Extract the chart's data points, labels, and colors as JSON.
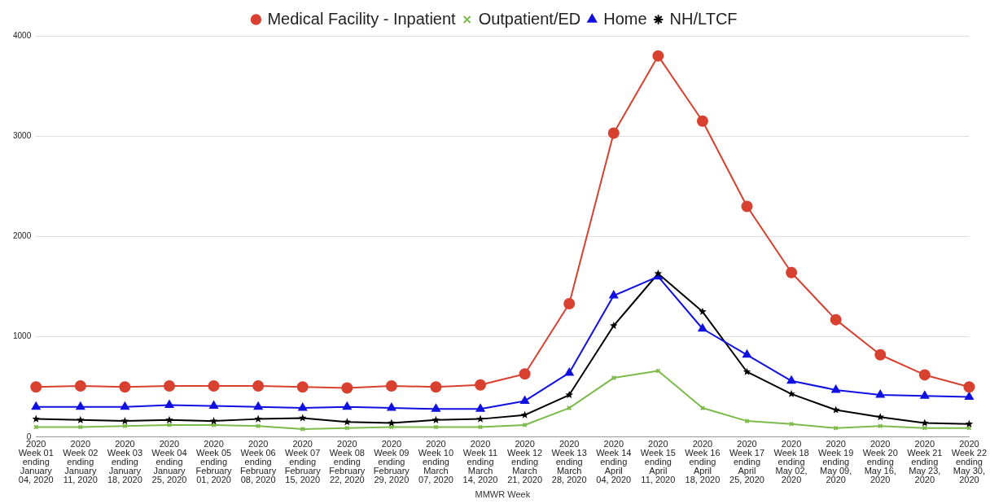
{
  "chart_data": {
    "type": "line",
    "xlabel": "MMWR Week",
    "categories": [
      "2020 Week 01 ending January 04, 2020",
      "2020 Week 02 ending January 11, 2020",
      "2020 Week 03 ending January 18, 2020",
      "2020 Week 04 ending January 25, 2020",
      "2020 Week 05 ending February 01, 2020",
      "2020 Week 06 ending February 08, 2020",
      "2020 Week 07 ending February 15, 2020",
      "2020 Week 08 ending February 22, 2020",
      "2020 Week 09 ending February 29, 2020",
      "2020 Week 10 ending March 07, 2020",
      "2020 Week 11 ending March 14, 2020",
      "2020 Week 12 ending March 21, 2020",
      "2020 Week 13 ending March 28, 2020",
      "2020 Week 14 ending April 04, 2020",
      "2020 Week 15 ending April 11, 2020",
      "2020 Week 16 ending April 18, 2020",
      "2020 Week 17 ending April 25, 2020",
      "2020 Week 18 ending May 02, 2020",
      "2020 Week 19 ending May 09, 2020",
      "2020 Week 20 ending May 16, 2020",
      "2020 Week 21 ending May 23, 2020",
      "2020 Week 22 ending May 30, 2020"
    ],
    "series": [
      {
        "name": "Medical Facility - Inpatient",
        "color": "#d8402f",
        "marker": "circle",
        "values": [
          500,
          510,
          500,
          510,
          510,
          510,
          500,
          490,
          510,
          500,
          520,
          630,
          1330,
          3030,
          3800,
          3150,
          2300,
          1640,
          1170,
          820,
          620,
          500
        ]
      },
      {
        "name": "Outpatient/ED",
        "color": "#7cba4a",
        "marker": "cross",
        "values": [
          100,
          100,
          110,
          120,
          120,
          110,
          80,
          90,
          100,
          100,
          100,
          120,
          290,
          590,
          660,
          290,
          160,
          130,
          90,
          110,
          90,
          90
        ]
      },
      {
        "name": "Home",
        "color": "#1010e0",
        "marker": "triangle",
        "values": [
          300,
          300,
          300,
          320,
          310,
          300,
          290,
          300,
          290,
          280,
          280,
          360,
          640,
          1410,
          1600,
          1080,
          820,
          560,
          470,
          420,
          410,
          400
        ]
      },
      {
        "name": "NH/LTCF",
        "color": "#000000",
        "marker": "star",
        "values": [
          180,
          170,
          160,
          170,
          160,
          180,
          190,
          150,
          140,
          170,
          180,
          220,
          420,
          1110,
          1630,
          1250,
          650,
          430,
          270,
          200,
          140,
          130
        ]
      }
    ],
    "ylim": [
      0,
      4000
    ],
    "yticks": [
      0,
      1000,
      2000,
      3000,
      4000
    ],
    "grid": "y",
    "legend": "top",
    "line_style": "solid"
  }
}
